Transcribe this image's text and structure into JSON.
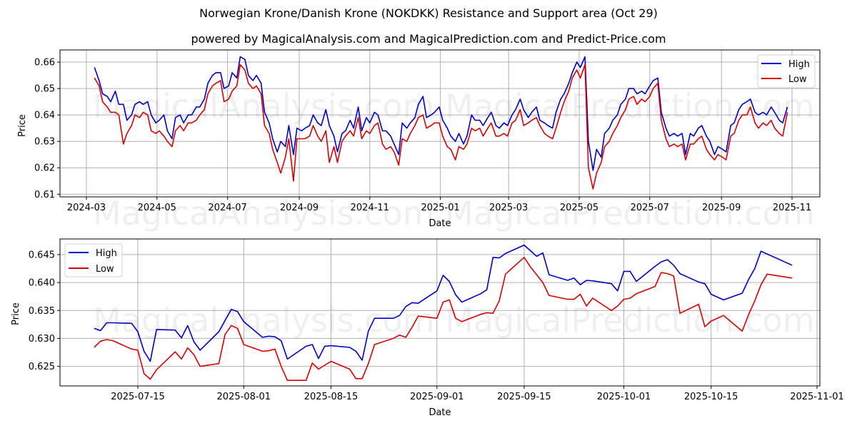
{
  "header": {
    "title": "Norwegian Krone/Danish Krone (NOKDKK) Resistance and Support area (Oct 29)",
    "subtitle": "powered by MagicalAnalysis.com and MagicalPrediction.com and Predict-Price.com"
  },
  "watermarks": {
    "top_line1": "MagicalAnalysis.com   MagicalPrediction.com",
    "top_line2": "MagicalAnalysis.com   MagicalPrediction.com",
    "bottom_line1": "MagicalAnalysis.com   MagicalPrediction.com"
  },
  "colors": {
    "high": "#0000cc",
    "low": "#dd0000",
    "grid": "#b0b0b0"
  },
  "chart_data": [
    {
      "type": "line",
      "title": "Norwegian Krone/Danish Krone (NOKDKK) Resistance and Support area (Oct 29)",
      "xlabel": "Date",
      "ylabel": "Price",
      "ylim": [
        0.609,
        0.6646
      ],
      "grid": true,
      "legend_position": "upper right",
      "legend": [
        "High",
        "Low"
      ],
      "x_ticks": [
        "2024-03",
        "2024-05",
        "2024-07",
        "2024-09",
        "2024-11",
        "2025-01",
        "2025-03",
        "2025-05",
        "2025-07",
        "2025-09",
        "2025-11"
      ],
      "y_ticks": [
        "0.61",
        "0.62",
        "0.63",
        "0.64",
        "0.65",
        "0.66"
      ],
      "x": [
        "2024-03-08",
        "2024-03-12",
        "2024-03-15",
        "2024-03-19",
        "2024-03-22",
        "2024-03-26",
        "2024-03-29",
        "2024-04-02",
        "2024-04-05",
        "2024-04-09",
        "2024-04-12",
        "2024-04-16",
        "2024-04-19",
        "2024-04-23",
        "2024-04-26",
        "2024-04-30",
        "2024-05-03",
        "2024-05-07",
        "2024-05-10",
        "2024-05-14",
        "2024-05-17",
        "2024-05-21",
        "2024-05-24",
        "2024-05-28",
        "2024-05-31",
        "2024-06-04",
        "2024-06-07",
        "2024-06-11",
        "2024-06-14",
        "2024-06-18",
        "2024-06-21",
        "2024-06-25",
        "2024-06-28",
        "2024-07-02",
        "2024-07-05",
        "2024-07-09",
        "2024-07-12",
        "2024-07-16",
        "2024-07-19",
        "2024-07-23",
        "2024-07-26",
        "2024-07-30",
        "2024-08-02",
        "2024-08-06",
        "2024-08-09",
        "2024-08-13",
        "2024-08-16",
        "2024-08-20",
        "2024-08-23",
        "2024-08-27",
        "2024-08-30",
        "2024-09-03",
        "2024-09-06",
        "2024-09-10",
        "2024-09-13",
        "2024-09-17",
        "2024-09-20",
        "2024-09-24",
        "2024-09-27",
        "2024-10-01",
        "2024-10-04",
        "2024-10-08",
        "2024-10-11",
        "2024-10-15",
        "2024-10-18",
        "2024-10-22",
        "2024-10-25",
        "2024-10-29",
        "2024-11-01",
        "2024-11-05",
        "2024-11-08",
        "2024-11-12",
        "2024-11-15",
        "2024-11-19",
        "2024-11-22",
        "2024-11-26",
        "2024-11-29",
        "2024-12-03",
        "2024-12-06",
        "2024-12-10",
        "2024-12-13",
        "2024-12-17",
        "2024-12-20",
        "2024-12-24",
        "2024-12-27",
        "2024-12-31",
        "2025-01-03",
        "2025-01-07",
        "2025-01-10",
        "2025-01-14",
        "2025-01-17",
        "2025-01-21",
        "2025-01-24",
        "2025-01-28",
        "2025-01-31",
        "2025-02-04",
        "2025-02-07",
        "2025-02-11",
        "2025-02-14",
        "2025-02-18",
        "2025-02-21",
        "2025-02-25",
        "2025-02-28",
        "2025-03-04",
        "2025-03-07",
        "2025-03-11",
        "2025-03-14",
        "2025-03-18",
        "2025-03-21",
        "2025-03-25",
        "2025-03-28",
        "2025-04-01",
        "2025-04-04",
        "2025-04-08",
        "2025-04-11",
        "2025-04-15",
        "2025-04-18",
        "2025-04-22",
        "2025-04-25",
        "2025-04-29",
        "2025-05-02",
        "2025-05-06",
        "2025-05-09",
        "2025-05-13",
        "2025-05-16",
        "2025-05-20",
        "2025-05-23",
        "2025-05-27",
        "2025-05-30",
        "2025-06-03",
        "2025-06-06",
        "2025-06-10",
        "2025-06-13",
        "2025-06-17",
        "2025-06-20",
        "2025-06-24",
        "2025-06-27",
        "2025-07-01",
        "2025-07-04",
        "2025-07-08",
        "2025-07-11",
        "2025-07-15",
        "2025-07-18",
        "2025-07-22",
        "2025-07-25",
        "2025-07-29",
        "2025-08-01",
        "2025-08-05",
        "2025-08-08",
        "2025-08-12",
        "2025-08-15",
        "2025-08-19",
        "2025-08-22",
        "2025-08-26",
        "2025-08-29",
        "2025-09-02",
        "2025-09-05",
        "2025-09-09",
        "2025-09-12",
        "2025-09-16",
        "2025-09-19",
        "2025-09-23",
        "2025-09-26",
        "2025-09-30",
        "2025-10-03",
        "2025-10-07",
        "2025-10-10",
        "2025-10-14",
        "2025-10-17",
        "2025-10-21",
        "2025-10-24",
        "2025-10-28"
      ],
      "series": [
        {
          "name": "High",
          "color": "#0000cc",
          "values": [
            0.658,
            0.653,
            0.648,
            0.647,
            0.645,
            0.649,
            0.644,
            0.644,
            0.638,
            0.64,
            0.644,
            0.645,
            0.644,
            0.645,
            0.64,
            0.637,
            0.638,
            0.64,
            0.634,
            0.631,
            0.639,
            0.64,
            0.637,
            0.64,
            0.64,
            0.643,
            0.643,
            0.646,
            0.652,
            0.655,
            0.656,
            0.656,
            0.65,
            0.651,
            0.656,
            0.654,
            0.662,
            0.661,
            0.655,
            0.653,
            0.655,
            0.652,
            0.641,
            0.637,
            0.631,
            0.626,
            0.63,
            0.628,
            0.636,
            0.625,
            0.635,
            0.634,
            0.635,
            0.636,
            0.64,
            0.637,
            0.636,
            0.642,
            0.636,
            0.632,
            0.626,
            0.633,
            0.634,
            0.638,
            0.635,
            0.643,
            0.634,
            0.639,
            0.637,
            0.641,
            0.64,
            0.634,
            0.634,
            0.632,
            0.629,
            0.625,
            0.637,
            0.635,
            0.637,
            0.639,
            0.644,
            0.647,
            0.639,
            0.64,
            0.641,
            0.643,
            0.638,
            0.635,
            0.632,
            0.63,
            0.633,
            0.629,
            0.632,
            0.64,
            0.638,
            0.638,
            0.636,
            0.639,
            0.641,
            0.636,
            0.635,
            0.637,
            0.636,
            0.64,
            0.642,
            0.646,
            0.642,
            0.639,
            0.641,
            0.643,
            0.638,
            0.637,
            0.636,
            0.635,
            0.641,
            0.646,
            0.648,
            0.652,
            0.656,
            0.66,
            0.658,
            0.662,
            0.63,
            0.619,
            0.627,
            0.624,
            0.633,
            0.635,
            0.638,
            0.64,
            0.644,
            0.646,
            0.65,
            0.65,
            0.648,
            0.649,
            0.648,
            0.651,
            0.653,
            0.654,
            0.641,
            0.635,
            0.632,
            0.633,
            0.632,
            0.633,
            0.625,
            0.633,
            0.632,
            0.635,
            0.636,
            0.632,
            0.63,
            0.625,
            0.628,
            0.627,
            0.626,
            0.636,
            0.637,
            0.642,
            0.644,
            0.645,
            0.646,
            0.641,
            0.64,
            0.641,
            0.64,
            0.643,
            0.641,
            0.638,
            0.637,
            0.643,
            0.644
          ]
        },
        {
          "name": "Low",
          "color": "#dd0000",
          "values": [
            0.654,
            0.651,
            0.645,
            0.643,
            0.641,
            0.641,
            0.64,
            0.629,
            0.633,
            0.636,
            0.64,
            0.639,
            0.641,
            0.64,
            0.634,
            0.633,
            0.634,
            0.632,
            0.63,
            0.628,
            0.634,
            0.636,
            0.634,
            0.637,
            0.637,
            0.638,
            0.64,
            0.642,
            0.648,
            0.651,
            0.652,
            0.653,
            0.645,
            0.646,
            0.649,
            0.651,
            0.659,
            0.657,
            0.652,
            0.65,
            0.651,
            0.648,
            0.636,
            0.633,
            0.627,
            0.622,
            0.618,
            0.624,
            0.631,
            0.615,
            0.631,
            0.631,
            0.631,
            0.632,
            0.636,
            0.632,
            0.63,
            0.634,
            0.622,
            0.628,
            0.622,
            0.63,
            0.632,
            0.634,
            0.632,
            0.639,
            0.631,
            0.634,
            0.633,
            0.636,
            0.637,
            0.629,
            0.627,
            0.628,
            0.626,
            0.621,
            0.631,
            0.63,
            0.633,
            0.636,
            0.639,
            0.64,
            0.635,
            0.636,
            0.637,
            0.637,
            0.632,
            0.628,
            0.627,
            0.623,
            0.628,
            0.627,
            0.629,
            0.635,
            0.634,
            0.635,
            0.632,
            0.635,
            0.637,
            0.632,
            0.632,
            0.633,
            0.632,
            0.637,
            0.638,
            0.642,
            0.636,
            0.637,
            0.638,
            0.639,
            0.636,
            0.633,
            0.632,
            0.631,
            0.635,
            0.641,
            0.645,
            0.649,
            0.654,
            0.657,
            0.654,
            0.659,
            0.62,
            0.612,
            0.618,
            0.622,
            0.628,
            0.63,
            0.633,
            0.636,
            0.639,
            0.642,
            0.646,
            0.647,
            0.644,
            0.646,
            0.645,
            0.647,
            0.65,
            0.652,
            0.638,
            0.631,
            0.628,
            0.629,
            0.628,
            0.629,
            0.623,
            0.629,
            0.629,
            0.631,
            0.632,
            0.627,
            0.625,
            0.623,
            0.625,
            0.624,
            0.623,
            0.632,
            0.633,
            0.638,
            0.64,
            0.64,
            0.643,
            0.637,
            0.635,
            0.637,
            0.636,
            0.638,
            0.635,
            0.633,
            0.632,
            0.641,
            0.641
          ]
        }
      ]
    },
    {
      "type": "line",
      "title": "",
      "xlabel": "Date",
      "ylabel": "Price",
      "ylim": [
        0.6215,
        0.6478
      ],
      "grid": true,
      "legend_position": "upper left",
      "legend": [
        "High",
        "Low"
      ],
      "x_ticks": [
        "2025-07-15",
        "2025-08-01",
        "2025-08-15",
        "2025-09-01",
        "2025-09-15",
        "2025-10-01",
        "2025-10-15",
        "2025-11-01"
      ],
      "y_ticks": [
        "0.625",
        "0.630",
        "0.635",
        "0.640",
        "0.645"
      ],
      "x": [
        "2025-07-08",
        "2025-07-09",
        "2025-07-10",
        "2025-07-11",
        "2025-07-14",
        "2025-07-15",
        "2025-07-16",
        "2025-07-17",
        "2025-07-18",
        "2025-07-21",
        "2025-07-22",
        "2025-07-23",
        "2025-07-24",
        "2025-07-25",
        "2025-07-28",
        "2025-07-29",
        "2025-07-30",
        "2025-07-31",
        "2025-08-01",
        "2025-08-04",
        "2025-08-05",
        "2025-08-06",
        "2025-08-07",
        "2025-08-08",
        "2025-08-11",
        "2025-08-12",
        "2025-08-13",
        "2025-08-14",
        "2025-08-15",
        "2025-08-18",
        "2025-08-19",
        "2025-08-20",
        "2025-08-21",
        "2025-08-22",
        "2025-08-25",
        "2025-08-26",
        "2025-08-27",
        "2025-08-28",
        "2025-08-29",
        "2025-09-01",
        "2025-09-02",
        "2025-09-03",
        "2025-09-04",
        "2025-09-05",
        "2025-09-08",
        "2025-09-09",
        "2025-09-10",
        "2025-09-11",
        "2025-09-12",
        "2025-09-15",
        "2025-09-16",
        "2025-09-17",
        "2025-09-18",
        "2025-09-19",
        "2025-09-22",
        "2025-09-23",
        "2025-09-24",
        "2025-09-25",
        "2025-09-26",
        "2025-09-29",
        "2025-09-30",
        "2025-10-01",
        "2025-10-02",
        "2025-10-03",
        "2025-10-06",
        "2025-10-07",
        "2025-10-08",
        "2025-10-09",
        "2025-10-10",
        "2025-10-13",
        "2025-10-14",
        "2025-10-15",
        "2025-10-17",
        "2025-10-20",
        "2025-10-21",
        "2025-10-22",
        "2025-10-23",
        "2025-10-24",
        "2025-10-28"
      ],
      "series": [
        {
          "name": "High",
          "color": "#0000cc",
          "values": [
            0.6318,
            0.6314,
            0.6328,
            0.6328,
            0.6327,
            0.6312,
            0.6277,
            0.6259,
            0.6316,
            0.6315,
            0.6301,
            0.6323,
            0.6294,
            0.6279,
            0.6312,
            0.6332,
            0.6352,
            0.6348,
            0.633,
            0.6302,
            0.6304,
            0.6303,
            0.6296,
            0.6263,
            0.6286,
            0.6289,
            0.6264,
            0.6286,
            0.6287,
            0.6284,
            0.6277,
            0.6261,
            0.6313,
            0.6336,
            0.6336,
            0.6341,
            0.6357,
            0.6364,
            0.6363,
            0.6385,
            0.6413,
            0.6402,
            0.6378,
            0.6365,
            0.638,
            0.6387,
            0.6445,
            0.6444,
            0.6452,
            0.6467,
            0.6457,
            0.6447,
            0.6453,
            0.6414,
            0.6404,
            0.6408,
            0.6396,
            0.6404,
            0.6403,
            0.6398,
            0.6385,
            0.642,
            0.642,
            0.6402,
            0.6429,
            0.6437,
            0.6441,
            0.6431,
            0.6416,
            0.6401,
            0.6398,
            0.6379,
            0.6369,
            0.6381,
            0.6405,
            0.6425,
            0.6456,
            0.6451,
            0.6431
          ]
        },
        {
          "name": "Low",
          "color": "#dd0000",
          "values": [
            0.6284,
            0.6295,
            0.6298,
            0.6296,
            0.6281,
            0.6279,
            0.6237,
            0.6227,
            0.6244,
            0.6276,
            0.6263,
            0.6283,
            0.6271,
            0.625,
            0.6255,
            0.6307,
            0.6323,
            0.6318,
            0.6289,
            0.6277,
            0.6278,
            0.6281,
            0.625,
            0.6225,
            0.6225,
            0.6256,
            0.6245,
            0.6252,
            0.6259,
            0.6245,
            0.6228,
            0.6228,
            0.6255,
            0.6289,
            0.63,
            0.6306,
            0.6302,
            0.632,
            0.634,
            0.6336,
            0.6365,
            0.6369,
            0.6336,
            0.633,
            0.6343,
            0.6346,
            0.6345,
            0.6367,
            0.6415,
            0.6445,
            0.6428,
            0.6414,
            0.64,
            0.6377,
            0.637,
            0.637,
            0.6379,
            0.6358,
            0.6372,
            0.635,
            0.6358,
            0.637,
            0.6372,
            0.638,
            0.6393,
            0.6418,
            0.6416,
            0.6412,
            0.6345,
            0.6361,
            0.6321,
            0.6331,
            0.6341,
            0.6313,
            0.6342,
            0.6367,
            0.6396,
            0.6415,
            0.6408
          ]
        }
      ]
    }
  ]
}
